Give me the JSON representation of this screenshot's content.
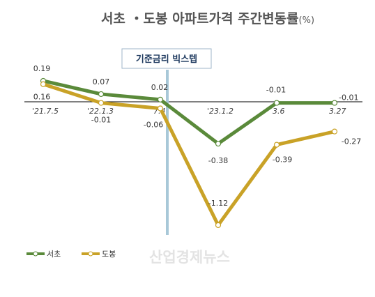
{
  "chart_data": {
    "type": "line",
    "title": "서초 ・도봉 아파트가격 주간변동률",
    "title_unit": "(%)",
    "categories": [
      "'21.7.5",
      "'22.1.3",
      "7.4",
      "'23.1.2",
      "3.6",
      "3.27"
    ],
    "series": [
      {
        "name": "서초",
        "color": "#5a8a3a",
        "values": [
          0.19,
          0.07,
          0.02,
          -0.38,
          -0.01,
          -0.01
        ],
        "labels": [
          "0.19",
          "0.07",
          "0.02",
          "-0.38",
          "-0.01",
          "-0.01"
        ]
      },
      {
        "name": "도봉",
        "color": "#c9a227",
        "values": [
          0.16,
          -0.01,
          -0.06,
          -1.12,
          -0.39,
          -0.27
        ],
        "labels": [
          "0.16",
          "-0.01",
          "-0.06",
          "-1.12",
          "-0.39",
          "-0.27"
        ]
      }
    ],
    "annotation": {
      "text": "기준금리 빅스텝",
      "line_color": "#a8c8d8"
    },
    "legend": {
      "position": "bottom-left",
      "items": [
        "서초",
        "도봉"
      ]
    },
    "grid": false,
    "baseline": 0
  },
  "watermark": "산업경제뉴스"
}
